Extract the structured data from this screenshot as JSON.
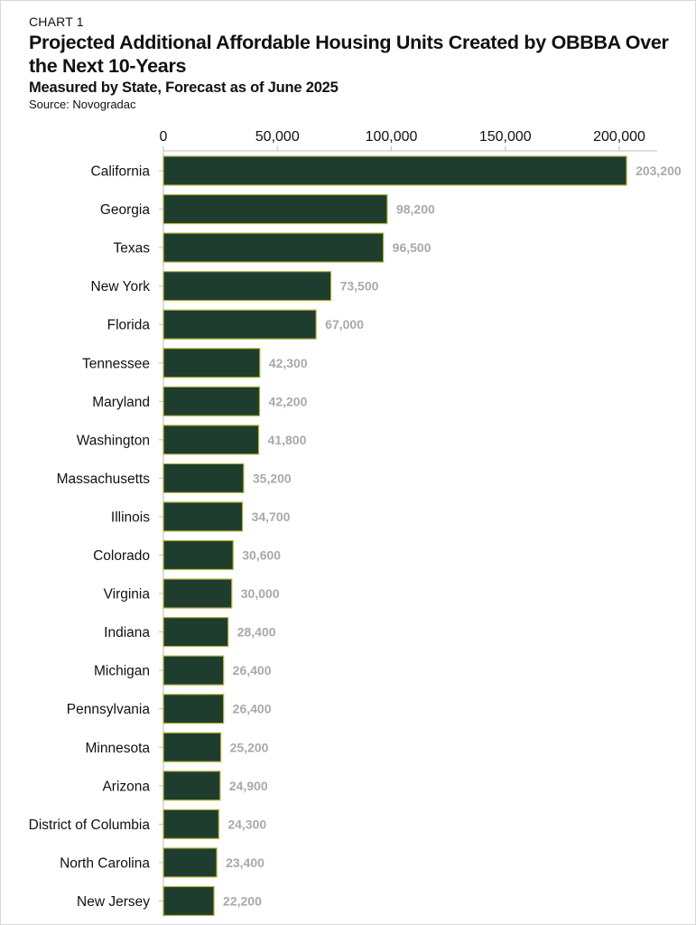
{
  "header": {
    "kicker": "CHART 1",
    "title": "Projected Additional Affordable Housing Units Created by OBBBA Over the Next 10-Years",
    "subtitle": "Measured by State, Forecast as of June 2025",
    "source": "Source: Novogradac"
  },
  "colors": {
    "bar_fill": "#1e3d2f",
    "bar_stroke": "#b9b53a",
    "value_label": "#a9a9a9"
  },
  "chart_data": {
    "type": "bar",
    "orientation": "horizontal",
    "title": "Projected Additional Affordable Housing Units Created by OBBBA Over the Next 10-Years",
    "subtitle": "Measured by State, Forecast as of June 2025",
    "xlabel": "",
    "ylabel": "",
    "xlim": [
      0,
      220000
    ],
    "x_ticks": [
      0,
      50000,
      100000,
      150000,
      200000
    ],
    "x_tick_labels": [
      "0",
      "50,000",
      "100,000",
      "150,000",
      "200,000"
    ],
    "axis_position": "top",
    "grid": false,
    "categories": [
      "California",
      "Georgia",
      "Texas",
      "New York",
      "Florida",
      "Tennessee",
      "Maryland",
      "Washington",
      "Massachusetts",
      "Illinois",
      "Colorado",
      "Virginia",
      "Indiana",
      "Michigan",
      "Pennsylvania",
      "Minnesota",
      "Arizona",
      "District of Columbia",
      "North Carolina",
      "New Jersey"
    ],
    "values": [
      203200,
      98200,
      96500,
      73500,
      67000,
      42300,
      42200,
      41800,
      35200,
      34700,
      30600,
      30000,
      28400,
      26400,
      26400,
      25200,
      24900,
      24300,
      23400,
      22200
    ],
    "value_labels": [
      "203,200",
      "98,200",
      "96,500",
      "73,500",
      "67,000",
      "42,300",
      "42,200",
      "41,800",
      "35,200",
      "34,700",
      "30,600",
      "30,000",
      "28,400",
      "26,400",
      "26,400",
      "25,200",
      "24,900",
      "24,300",
      "23,400",
      "22,200"
    ]
  }
}
